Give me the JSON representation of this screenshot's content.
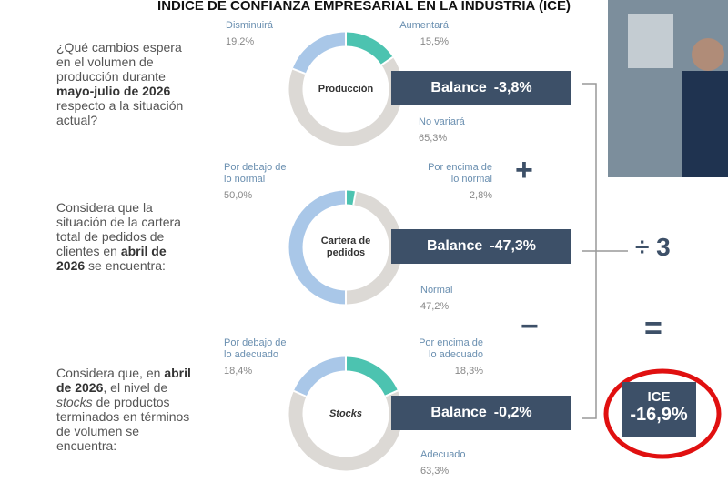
{
  "title": "ÍNDICE DE CONFIANZA EMPRESARIAL EN LA INDUSTRIA (ICE)",
  "sections": [
    {
      "question": [
        {
          "text": "¿Qué cambios espera en el volumen de producción durante "
        },
        {
          "text": "mayo-julio de 2026",
          "bold": true
        },
        {
          "text": " respecto a la situación actual?"
        }
      ],
      "center": "Producción",
      "segments": [
        {
          "label": "Aumentará",
          "value": 15.5,
          "value_label": "15,5%",
          "color": "#4cc3b0"
        },
        {
          "label": "No variará",
          "value": 65.3,
          "value_label": "65,3%",
          "color": "#dcd9d5"
        },
        {
          "label": "Disminuirá",
          "value": 19.2,
          "value_label": "19,2%",
          "color": "#a9c7e8"
        }
      ],
      "balance_label": "Balance",
      "balance": "-3,8%"
    },
    {
      "question": [
        {
          "text": "Considera que la situación de la cartera total de pedidos de clientes en "
        },
        {
          "text": "abril de 2026",
          "bold": true
        },
        {
          "text": " se encuentra:"
        }
      ],
      "center": "Cartera de\npedidos",
      "segments": [
        {
          "label": "Por encima de\nlo normal",
          "value": 2.8,
          "value_label": "2,8%",
          "color": "#4cc3b0"
        },
        {
          "label": "Normal",
          "value": 47.2,
          "value_label": "47,2%",
          "color": "#dcd9d5"
        },
        {
          "label": "Por debajo de\nlo normal",
          "value": 50.0,
          "value_label": "50,0%",
          "color": "#a9c7e8"
        }
      ],
      "balance_label": "Balance",
      "balance": "-47,3%"
    },
    {
      "question": [
        {
          "text": "Considera que, en "
        },
        {
          "text": "abril de 2026",
          "bold": true
        },
        {
          "text": ", el nivel de "
        },
        {
          "text": "stocks",
          "italic": true
        },
        {
          "text": " de productos terminados en términos de volumen se encuentra:"
        }
      ],
      "center": "Stocks",
      "segments": [
        {
          "label": "Por encima de\nlo adecuado",
          "value": 18.3,
          "value_label": "18,3%",
          "color": "#4cc3b0"
        },
        {
          "label": "Adecuado",
          "value": 63.3,
          "value_label": "63,3%",
          "color": "#dcd9d5"
        },
        {
          "label": "Por debajo de\nlo adecuado",
          "value": 18.4,
          "value_label": "18,4%",
          "color": "#a9c7e8"
        }
      ],
      "balance_label": "Balance",
      "balance": "-0,2%"
    }
  ],
  "operators": {
    "plus": "+",
    "minus": "−",
    "divide": "÷ 3",
    "equals": "="
  },
  "result": {
    "label": "ICE",
    "value": "-16,9%"
  }
}
